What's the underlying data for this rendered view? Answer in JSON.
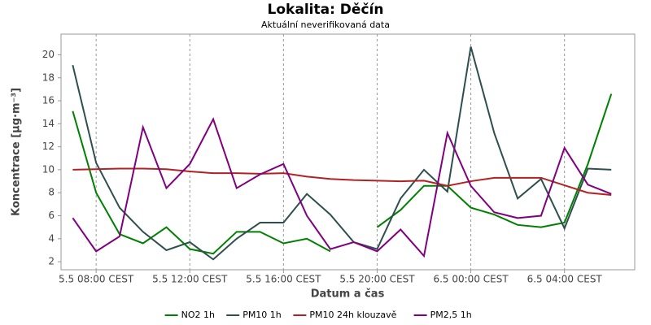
{
  "chart_data": {
    "type": "line",
    "title": "Lokalita: Děčín",
    "subtitle": "Aktuální neverifikovaná data",
    "x_label": "Datum a čas",
    "y_label": "Koncentrace [µg·m⁻³]",
    "x": [
      7,
      8,
      9,
      10,
      11,
      12,
      13,
      14,
      15,
      16,
      17,
      18,
      19,
      20,
      21,
      22,
      23,
      24,
      25,
      26,
      27,
      28,
      29,
      30
    ],
    "xlim": [
      6.5,
      31
    ],
    "ylim": [
      1.3,
      21.8
    ],
    "xticks": [
      {
        "value": 8,
        "label": "5.5 08:00 CEST"
      },
      {
        "value": 12,
        "label": "5.5 12:00 CEST"
      },
      {
        "value": 16,
        "label": "5.5 16:00 CEST"
      },
      {
        "value": 20,
        "label": "5.5 20:00 CEST"
      },
      {
        "value": 24,
        "label": "6.5 00:00 CEST"
      },
      {
        "value": 28,
        "label": "6.5 04:00 CEST"
      }
    ],
    "yticks": [
      2,
      4,
      6,
      8,
      10,
      12,
      14,
      16,
      18,
      20
    ],
    "grid": true,
    "legend": "bottom",
    "series": [
      {
        "name": "NO2 1h",
        "color": "#008000",
        "values": [
          15.1,
          8.0,
          4.4,
          3.6,
          5.0,
          3.1,
          2.7,
          4.6,
          4.6,
          3.6,
          4.0,
          2.9,
          null,
          5.0,
          6.5,
          8.6,
          8.6,
          6.7,
          6.1,
          5.2,
          5.0,
          5.4,
          10.5,
          16.6
        ]
      },
      {
        "name": "PM10 1h",
        "color": "#2f4f4f",
        "values": [
          19.1,
          10.6,
          6.7,
          4.6,
          3.0,
          3.7,
          2.2,
          4.0,
          5.4,
          5.4,
          7.9,
          6.1,
          3.7,
          3.1,
          7.5,
          10.0,
          8.1,
          20.7,
          13.2,
          7.5,
          9.2,
          4.9,
          10.1,
          10.0
        ]
      },
      {
        "name": "PM10 24h klouzavě",
        "color": "#b22222",
        "values": [
          10.0,
          10.05,
          10.1,
          10.1,
          10.05,
          9.85,
          9.7,
          9.7,
          9.65,
          9.7,
          9.4,
          9.2,
          9.1,
          9.05,
          9.0,
          9.05,
          8.6,
          9.0,
          9.3,
          9.3,
          9.3,
          8.65,
          8.0,
          7.8
        ]
      },
      {
        "name": "PM2,5 1h",
        "color": "#800080",
        "values": [
          5.8,
          2.9,
          4.2,
          13.7,
          8.4,
          10.5,
          14.4,
          8.4,
          9.6,
          10.5,
          6.0,
          3.1,
          3.7,
          2.9,
          4.8,
          2.5,
          13.2,
          8.6,
          6.3,
          5.8,
          6.0,
          11.9,
          8.7,
          7.9
        ]
      }
    ]
  }
}
